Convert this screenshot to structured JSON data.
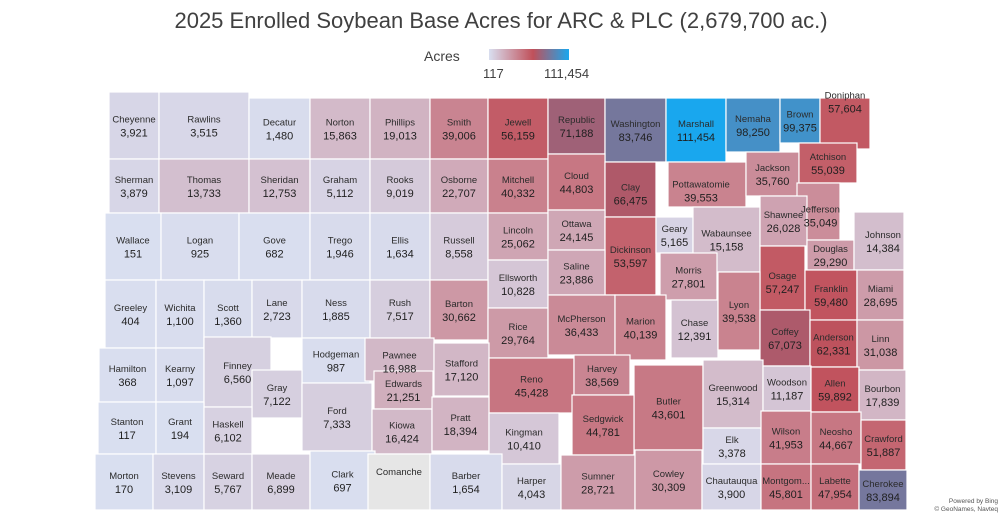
{
  "title": "2025 Enrolled Soybean Base Acres for ARC & PLC (2,679,700 ac.)",
  "legend": {
    "label": "Acres",
    "min": 117,
    "max": 111454,
    "min_text": "117",
    "max_text": "111,454",
    "color_low": "#d9dff0",
    "color_mid": "#c0505a",
    "color_high": "#19a7ee"
  },
  "no_data_color": "#e6e6e6",
  "attribution": {
    "line1": "Powered by Bing",
    "line2": "© GeoNames, Navteq"
  },
  "counties": [
    {
      "name": "Cheyenne",
      "value": 3921,
      "text": "3,921"
    },
    {
      "name": "Rawlins",
      "value": 3515,
      "text": "3,515"
    },
    {
      "name": "Decatur",
      "value": 1480,
      "text": "1,480"
    },
    {
      "name": "Norton",
      "value": 15863,
      "text": "15,863"
    },
    {
      "name": "Phillips",
      "value": 19013,
      "text": "19,013"
    },
    {
      "name": "Smith",
      "value": 39006,
      "text": "39,006"
    },
    {
      "name": "Jewell",
      "value": 56159,
      "text": "56,159"
    },
    {
      "name": "Republic",
      "value": 71188,
      "text": "71,188"
    },
    {
      "name": "Washington",
      "value": 83746,
      "text": "83,746"
    },
    {
      "name": "Marshall",
      "value": 111454,
      "text": "111,454"
    },
    {
      "name": "Nemaha",
      "value": 98250,
      "text": "98,250"
    },
    {
      "name": "Brown",
      "value": 99375,
      "text": "99,375"
    },
    {
      "name": "Doniphan",
      "value": 57604,
      "text": "57,604"
    },
    {
      "name": "Sherman",
      "value": 3879,
      "text": "3,879"
    },
    {
      "name": "Thomas",
      "value": 13733,
      "text": "13,733"
    },
    {
      "name": "Sheridan",
      "value": 12753,
      "text": "12,753"
    },
    {
      "name": "Graham",
      "value": 5112,
      "text": "5,112"
    },
    {
      "name": "Rooks",
      "value": 9019,
      "text": "9,019"
    },
    {
      "name": "Osborne",
      "value": 22707,
      "text": "22,707"
    },
    {
      "name": "Mitchell",
      "value": 40332,
      "text": "40,332"
    },
    {
      "name": "Cloud",
      "value": 44803,
      "text": "44,803"
    },
    {
      "name": "Clay",
      "value": 66475,
      "text": "66,475"
    },
    {
      "name": "Pottawatomie",
      "value": 39553,
      "text": "39,553"
    },
    {
      "name": "Jackson",
      "value": 35760,
      "text": "35,760"
    },
    {
      "name": "Atchison",
      "value": 55039,
      "text": "55,039"
    },
    {
      "name": "Jefferson",
      "value": 35049,
      "text": "35,049"
    },
    {
      "name": "Wallace",
      "value": 151,
      "text": "151"
    },
    {
      "name": "Logan",
      "value": 925,
      "text": "925"
    },
    {
      "name": "Gove",
      "value": 682,
      "text": "682"
    },
    {
      "name": "Trego",
      "value": 1946,
      "text": "1,946"
    },
    {
      "name": "Ellis",
      "value": 1634,
      "text": "1,634"
    },
    {
      "name": "Russell",
      "value": 8558,
      "text": "8,558"
    },
    {
      "name": "Lincoln",
      "value": 25062,
      "text": "25,062"
    },
    {
      "name": "Ottawa",
      "value": 24145,
      "text": "24,145"
    },
    {
      "name": "Dickinson",
      "value": 53597,
      "text": "53,597"
    },
    {
      "name": "Geary",
      "value": 5165,
      "text": "5,165"
    },
    {
      "name": "Wabaunsee",
      "value": 15158,
      "text": "15,158"
    },
    {
      "name": "Shawnee",
      "value": 26028,
      "text": "26,028"
    },
    {
      "name": "Douglas",
      "value": 29290,
      "text": "29,290"
    },
    {
      "name": "Johnson",
      "value": 14384,
      "text": "14,384"
    },
    {
      "name": "Ellsworth",
      "value": 10828,
      "text": "10,828"
    },
    {
      "name": "Saline",
      "value": 23886,
      "text": "23,886"
    },
    {
      "name": "Morris",
      "value": 27801,
      "text": "27,801"
    },
    {
      "name": "Osage",
      "value": 57247,
      "text": "57,247"
    },
    {
      "name": "Franklin",
      "value": 59480,
      "text": "59,480"
    },
    {
      "name": "Miami",
      "value": 28695,
      "text": "28,695"
    },
    {
      "name": "Greeley",
      "value": 404,
      "text": "404"
    },
    {
      "name": "Wichita",
      "value": 1100,
      "text": "1,100"
    },
    {
      "name": "Scott",
      "value": 1360,
      "text": "1,360"
    },
    {
      "name": "Lane",
      "value": 2723,
      "text": "2,723"
    },
    {
      "name": "Ness",
      "value": 1885,
      "text": "1,885"
    },
    {
      "name": "Rush",
      "value": 7517,
      "text": "7,517"
    },
    {
      "name": "Barton",
      "value": 30662,
      "text": "30,662"
    },
    {
      "name": "Rice",
      "value": 29764,
      "text": "29,764"
    },
    {
      "name": "McPherson",
      "value": 36433,
      "text": "36,433"
    },
    {
      "name": "Marion",
      "value": 40139,
      "text": "40,139"
    },
    {
      "name": "Chase",
      "value": 12391,
      "text": "12,391"
    },
    {
      "name": "Lyon",
      "value": 39538,
      "text": "39,538"
    },
    {
      "name": "Coffey",
      "value": 67073,
      "text": "67,073"
    },
    {
      "name": "Anderson",
      "value": 62331,
      "text": "62,331"
    },
    {
      "name": "Linn",
      "value": 31038,
      "text": "31,038"
    },
    {
      "name": "Hamilton",
      "value": 368,
      "text": "368"
    },
    {
      "name": "Kearny",
      "value": 1097,
      "text": "1,097"
    },
    {
      "name": "Finney",
      "value": 6560,
      "text": "6,560"
    },
    {
      "name": "Hodgeman",
      "value": 987,
      "text": "987"
    },
    {
      "name": "Pawnee",
      "value": 16988,
      "text": "16,988"
    },
    {
      "name": "Stafford",
      "value": 17120,
      "text": "17,120"
    },
    {
      "name": "Reno",
      "value": 45428,
      "text": "45,428"
    },
    {
      "name": "Harvey",
      "value": 38569,
      "text": "38,569"
    },
    {
      "name": "Butler",
      "value": 43601,
      "text": "43,601"
    },
    {
      "name": "Greenwood",
      "value": 15314,
      "text": "15,314"
    },
    {
      "name": "Woodson",
      "value": 11187,
      "text": "11,187"
    },
    {
      "name": "Allen",
      "value": 59892,
      "text": "59,892"
    },
    {
      "name": "Bourbon",
      "value": 17839,
      "text": "17,839"
    },
    {
      "name": "Gray",
      "value": 7122,
      "text": "7,122"
    },
    {
      "name": "Edwards",
      "value": 21251,
      "text": "21,251"
    },
    {
      "name": "Stanton",
      "value": 117,
      "text": "117"
    },
    {
      "name": "Grant",
      "value": 194,
      "text": "194"
    },
    {
      "name": "Haskell",
      "value": 6102,
      "text": "6,102"
    },
    {
      "name": "Ford",
      "value": 7333,
      "text": "7,333"
    },
    {
      "name": "Kiowa",
      "value": 16424,
      "text": "16,424"
    },
    {
      "name": "Pratt",
      "value": 18394,
      "text": "18,394"
    },
    {
      "name": "Kingman",
      "value": 10410,
      "text": "10,410"
    },
    {
      "name": "Sedgwick",
      "value": 44781,
      "text": "44,781"
    },
    {
      "name": "Elk",
      "value": 3378,
      "text": "3,378"
    },
    {
      "name": "Wilson",
      "value": 41953,
      "text": "41,953"
    },
    {
      "name": "Neosho",
      "value": 44667,
      "text": "44,667"
    },
    {
      "name": "Crawford",
      "value": 51887,
      "text": "51,887"
    },
    {
      "name": "Morton",
      "value": 170,
      "text": "170"
    },
    {
      "name": "Stevens",
      "value": 3109,
      "text": "3,109"
    },
    {
      "name": "Seward",
      "value": 5767,
      "text": "5,767"
    },
    {
      "name": "Meade",
      "value": 6899,
      "text": "6,899"
    },
    {
      "name": "Clark",
      "value": 697,
      "text": "697"
    },
    {
      "name": "Comanche",
      "value": null,
      "text": ""
    },
    {
      "name": "Barber",
      "value": 1654,
      "text": "1,654"
    },
    {
      "name": "Harper",
      "value": 4043,
      "text": "4,043"
    },
    {
      "name": "Sumner",
      "value": 28721,
      "text": "28,721"
    },
    {
      "name": "Cowley",
      "value": 30309,
      "text": "30,309"
    },
    {
      "name": "Chautauqua",
      "value": 3900,
      "text": "3,900"
    },
    {
      "name": "Montgom...",
      "value": 45801,
      "text": "45,801"
    },
    {
      "name": "Labette",
      "value": 47954,
      "text": "47,954"
    },
    {
      "name": "Cherokee",
      "value": 83894,
      "text": "83,894"
    }
  ]
}
